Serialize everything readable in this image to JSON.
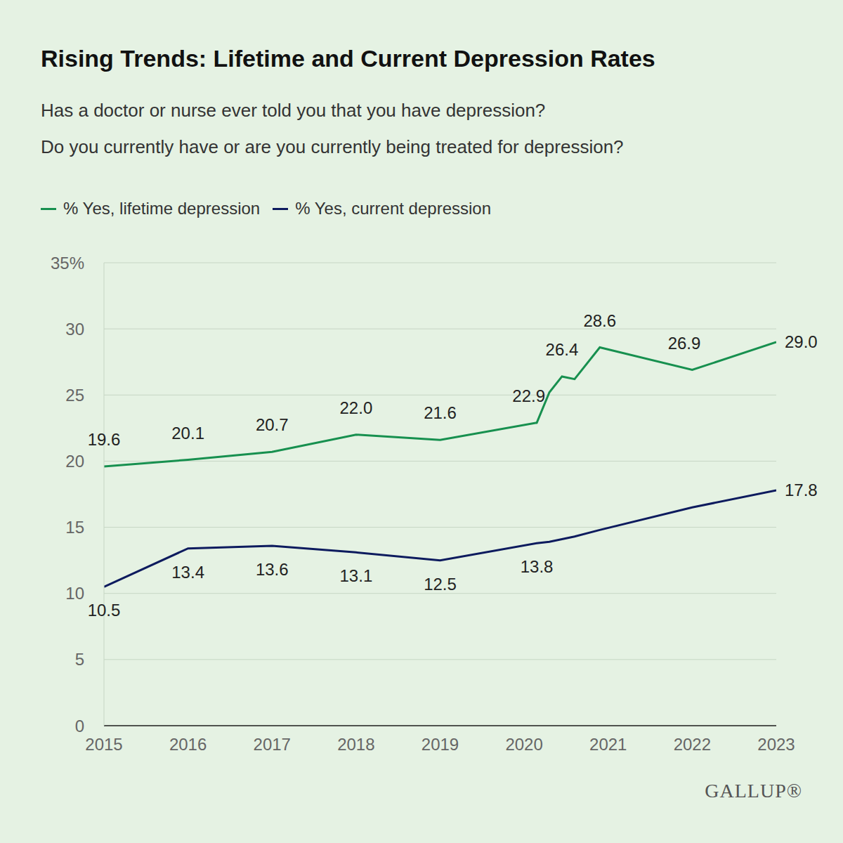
{
  "chart_data": {
    "type": "line",
    "title": "Rising Trends: Lifetime and Current Depression Rates",
    "subtitle": [
      "Has a doctor or nurse ever told you that you have depression?",
      "Do you currently have or are you currently being treated for depression?"
    ],
    "source": "GALLUP®",
    "x": [
      2015,
      2016,
      2017,
      2018,
      2019,
      2020.15,
      2020.3,
      2020.45,
      2020.6,
      2020.9,
      2022,
      2023
    ],
    "series": [
      {
        "name": "% Yes, lifetime depression",
        "color": "#17904f",
        "values": [
          19.6,
          20.1,
          20.7,
          22.0,
          21.6,
          22.9,
          25.2,
          26.4,
          26.2,
          28.6,
          26.9,
          29.0
        ],
        "value_labels": [
          "19.6",
          "20.1",
          "20.7",
          "22.0",
          "21.6",
          "22.9",
          null,
          "26.4",
          null,
          "28.6",
          "26.9",
          "29.0"
        ]
      },
      {
        "name": "% Yes, current depression",
        "color": "#0d1b5e",
        "values": [
          10.5,
          13.4,
          13.6,
          13.1,
          12.5,
          13.8,
          13.9,
          14.1,
          14.3,
          14.8,
          16.5,
          17.8
        ],
        "value_labels": [
          "10.5",
          "13.4",
          "13.6",
          "13.1",
          "12.5",
          "13.8",
          null,
          null,
          null,
          null,
          null,
          "17.8"
        ]
      }
    ],
    "xlim": [
      2015,
      2023
    ],
    "xticks": [
      2015,
      2016,
      2017,
      2018,
      2019,
      2020,
      2021,
      2022,
      2023
    ],
    "ylim": [
      0,
      35
    ],
    "yticks": [
      0,
      5,
      10,
      15,
      20,
      25,
      30,
      {
        "value": 35,
        "label": "35%"
      }
    ],
    "grid": true,
    "legend": "top-left",
    "data_labels": true
  }
}
